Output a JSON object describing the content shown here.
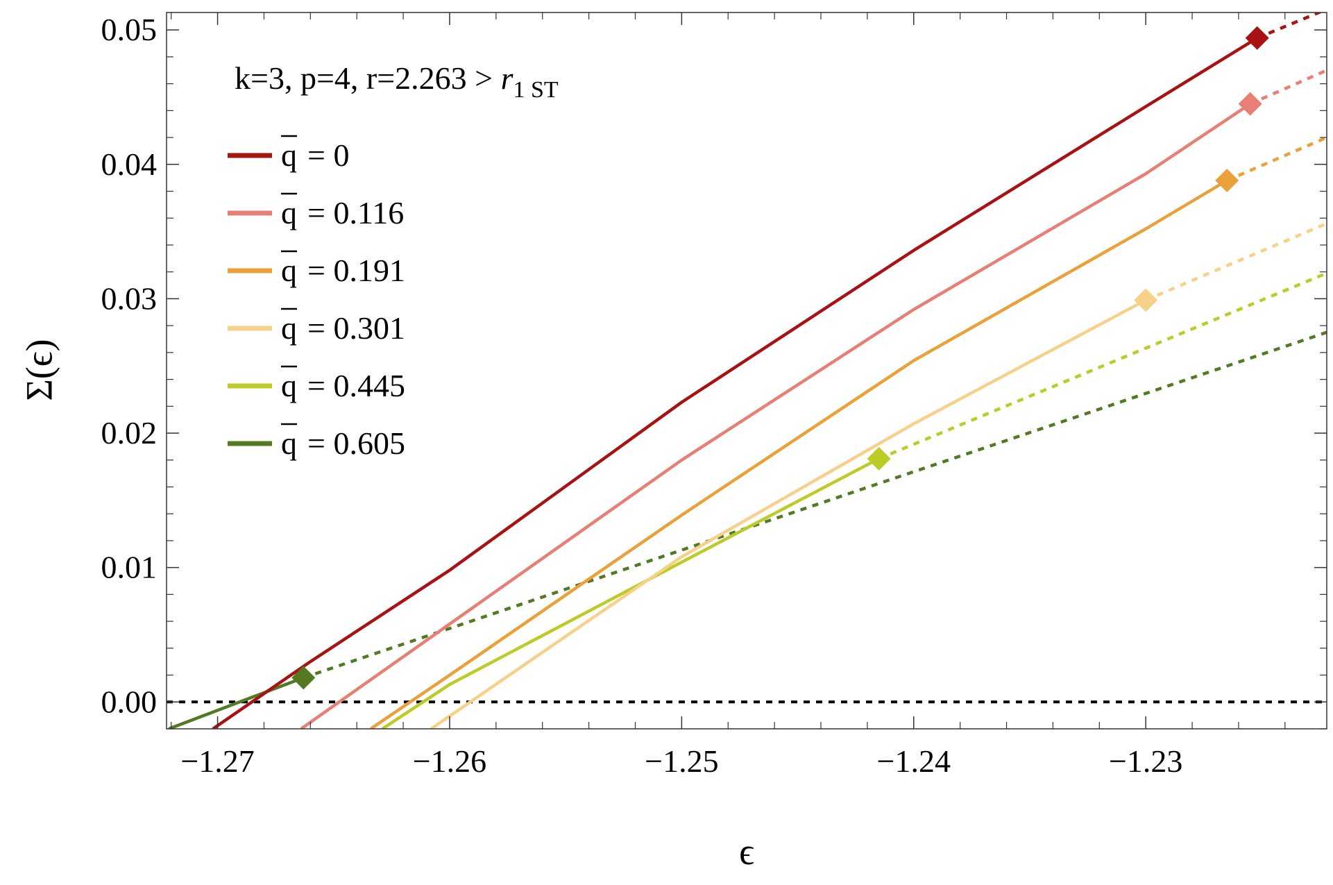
{
  "chart_data": {
    "type": "line",
    "title": "",
    "annotation": {
      "main": "k=3, p=4, r=2.263 > ",
      "symbol": "r",
      "subscript": "1 ST"
    },
    "xlabel": "ϵ",
    "ylabel": "Σ(ϵ)",
    "xlim": [
      -1.2722,
      -1.2222
    ],
    "ylim": [
      -0.002,
      0.0513
    ],
    "x_ticks": [
      -1.27,
      -1.26,
      -1.25,
      -1.24,
      -1.23
    ],
    "x_tick_labels": [
      "−1.27",
      "−1.26",
      "−1.25",
      "−1.24",
      "−1.23"
    ],
    "y_ticks": [
      0.0,
      0.01,
      0.02,
      0.03,
      0.04,
      0.05
    ],
    "y_tick_labels": [
      "0.00",
      "0.01",
      "0.02",
      "0.03",
      "0.04",
      "0.05"
    ],
    "grid": false,
    "legend_position": "top-left",
    "reference_line": {
      "y": 0,
      "style": "dashed",
      "color": "#000000"
    },
    "series": [
      {
        "name": "q̄ = 0",
        "legend_label": "= 0",
        "color": "#a81212",
        "solid": [
          [
            -1.2702,
            -0.002
          ],
          [
            -1.266,
            0.003
          ],
          [
            -1.26,
            0.0098
          ],
          [
            -1.25,
            0.0223
          ],
          [
            -1.24,
            0.0336
          ],
          [
            -1.23,
            0.0443
          ],
          [
            -1.2252,
            0.0494
          ]
        ],
        "dashed": [
          [
            -1.2252,
            0.0494
          ],
          [
            -1.2224,
            0.0514
          ]
        ],
        "marker": [
          -1.2252,
          0.0494
        ]
      },
      {
        "name": "q̄ = 0.116",
        "legend_label": "= 0.116",
        "color": "#e87f74",
        "solid": [
          [
            -1.2664,
            -0.002
          ],
          [
            -1.26,
            0.0058
          ],
          [
            -1.25,
            0.018
          ],
          [
            -1.24,
            0.0292
          ],
          [
            -1.23,
            0.0393
          ],
          [
            -1.2255,
            0.0445
          ]
        ],
        "dashed": [
          [
            -1.2255,
            0.0445
          ],
          [
            -1.2222,
            0.047
          ]
        ],
        "marker": [
          -1.2255,
          0.0445
        ]
      },
      {
        "name": "q̄ = 0.191",
        "legend_label": "= 0.191",
        "color": "#eba13a",
        "solid": [
          [
            -1.2634,
            -0.002
          ],
          [
            -1.26,
            0.002
          ],
          [
            -1.25,
            0.0139
          ],
          [
            -1.24,
            0.0254
          ],
          [
            -1.23,
            0.0352
          ],
          [
            -1.2265,
            0.0388
          ]
        ],
        "dashed": [
          [
            -1.2265,
            0.0388
          ],
          [
            -1.2222,
            0.042
          ]
        ],
        "marker": [
          -1.2265,
          0.0388
        ]
      },
      {
        "name": "q̄ = 0.301",
        "legend_label": "= 0.301",
        "color": "#f7d18a",
        "solid": [
          [
            -1.2608,
            -0.002
          ],
          [
            -1.25,
            0.0108
          ],
          [
            -1.24,
            0.0207
          ],
          [
            -1.23,
            0.0299
          ]
        ],
        "dashed": [
          [
            -1.23,
            0.0299
          ],
          [
            -1.2222,
            0.0356
          ]
        ],
        "marker": [
          -1.23,
          0.0299
        ]
      },
      {
        "name": "q̄ = 0.445",
        "legend_label": "= 0.445",
        "color": "#bccb27",
        "solid": [
          [
            -1.2629,
            -0.002
          ],
          [
            -1.26,
            0.0013
          ],
          [
            -1.25,
            0.0104
          ],
          [
            -1.2415,
            0.0181
          ]
        ],
        "dashed": [
          [
            -1.2415,
            0.0181
          ],
          [
            -1.2222,
            0.0319
          ]
        ],
        "marker": [
          -1.2415,
          0.0181
        ]
      },
      {
        "name": "q̄ = 0.605",
        "legend_label": "= 0.605",
        "color": "#537a23",
        "solid": [
          [
            -1.2721,
            -0.002
          ],
          [
            -1.2663,
            0.0018
          ]
        ],
        "dashed": [
          [
            -1.2663,
            0.0018
          ],
          [
            -1.2222,
            0.0275
          ]
        ],
        "marker": [
          -1.2663,
          0.0018
        ]
      }
    ]
  }
}
